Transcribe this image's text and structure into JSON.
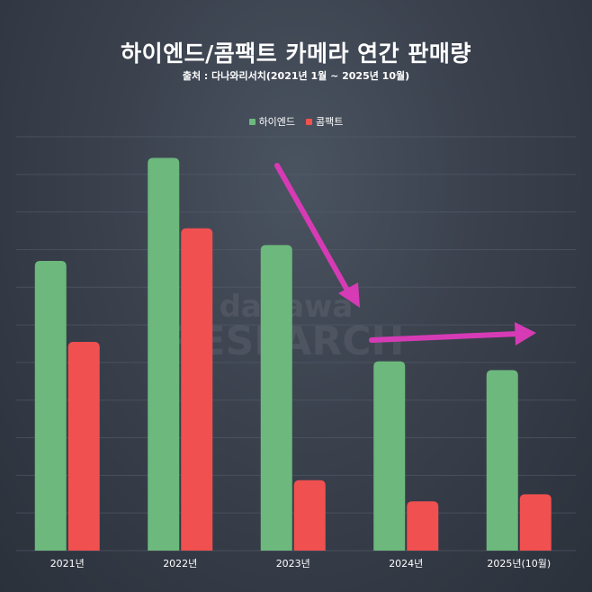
{
  "title": "하이엔드/콤팩트 카메라 연간 판매량",
  "subtitle": "출처 : 다나와리서치(2021년 1월 ~ 2025년 10월)",
  "watermark": {
    "line1": "danawa",
    "line2": "RESEARCH"
  },
  "colors": {
    "highend": "#6db87d",
    "compact": "#f05050",
    "arrow": "#d63bb5",
    "grid": "#555e6b"
  },
  "chart_data": {
    "type": "bar",
    "categories": [
      "2021년",
      "2022년",
      "2023년",
      "2024년",
      "2025년(10월)"
    ],
    "series": [
      {
        "name": "하이엔드",
        "values": [
          329,
          446,
          347,
          215,
          205
        ]
      },
      {
        "name": "콤팩트",
        "values": [
          237,
          366,
          80,
          56,
          64
        ]
      }
    ],
    "ylim": [
      0,
      470
    ],
    "grid": true,
    "legend": "top-center",
    "annotations": [
      "down-arrow",
      "right-arrow"
    ]
  }
}
